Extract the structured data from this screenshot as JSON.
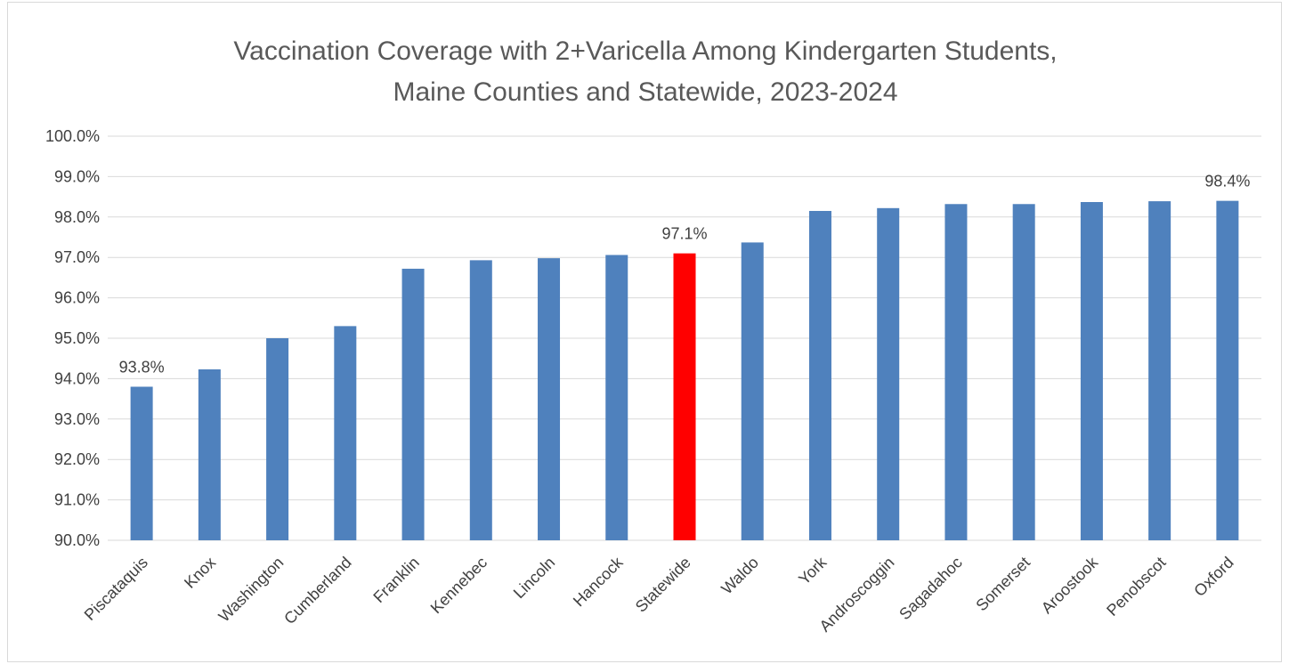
{
  "chart_data": {
    "type": "bar",
    "title_lines": [
      "Vaccination Coverage with 2+Varicella Among Kindergarten Students,",
      "Maine Counties and Statewide, 2023-2024"
    ],
    "categories": [
      "Piscataquis",
      "Knox",
      "Washington",
      "Cumberland",
      "Franklin",
      "Kennebec",
      "Lincoln",
      "Hancock",
      "Statewide",
      "Waldo",
      "York",
      "Androscoggin",
      "Sagadahoc",
      "Somerset",
      "Aroostook",
      "Penobscot",
      "Oxford"
    ],
    "values": [
      93.8,
      94.23,
      95.0,
      95.3,
      96.72,
      96.93,
      96.98,
      97.06,
      97.1,
      97.37,
      98.15,
      98.22,
      98.32,
      98.32,
      98.37,
      98.39,
      98.4
    ],
    "bar_colors": [
      "#4f81bd",
      "#4f81bd",
      "#4f81bd",
      "#4f81bd",
      "#4f81bd",
      "#4f81bd",
      "#4f81bd",
      "#4f81bd",
      "#ff0000",
      "#4f81bd",
      "#4f81bd",
      "#4f81bd",
      "#4f81bd",
      "#4f81bd",
      "#4f81bd",
      "#4f81bd",
      "#4f81bd"
    ],
    "data_labels": {
      "0": "93.8%",
      "8": "97.1%",
      "16": "98.4%"
    },
    "y_ticks": [
      "90.0%",
      "91.0%",
      "92.0%",
      "93.0%",
      "94.0%",
      "95.0%",
      "96.0%",
      "97.0%",
      "98.0%",
      "99.0%",
      "100.0%"
    ],
    "ylim": [
      90,
      100
    ],
    "grid": true,
    "xlabel": "",
    "ylabel": ""
  }
}
